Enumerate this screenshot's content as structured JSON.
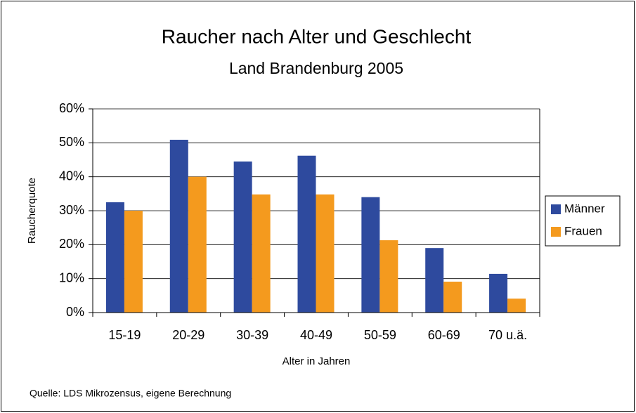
{
  "chart_data": {
    "type": "bar",
    "title": "Raucher nach Alter und Geschlecht",
    "subtitle": "Land Brandenburg 2005",
    "ylabel": "Raucherquote",
    "xlabel": "Alter in Jahren",
    "source": "Quelle: LDS Mikrozensus, eigene Berechnung",
    "categories": [
      "15-19",
      "20-29",
      "30-39",
      "40-49",
      "50-59",
      "60-69",
      "70 u.ä."
    ],
    "series": [
      {
        "name": "Männer",
        "color": "#2e4a9e",
        "values": [
          32.5,
          50.9,
          44.5,
          46.2,
          34,
          19,
          11.4
        ]
      },
      {
        "name": "Frauen",
        "color": "#f49a1e",
        "values": [
          30,
          40,
          34.8,
          34.8,
          21.3,
          9.1,
          4.1
        ]
      }
    ],
    "ylim": [
      0,
      60
    ],
    "yticks": [
      {
        "value": 0,
        "label": "0%"
      },
      {
        "value": 10,
        "label": "10%"
      },
      {
        "value": 20,
        "label": "20%"
      },
      {
        "value": 30,
        "label": "30%"
      },
      {
        "value": 40,
        "label": "40%"
      },
      {
        "value": 50,
        "label": "50%"
      },
      {
        "value": 60,
        "label": "60%"
      }
    ],
    "grid": true,
    "legend": "right"
  }
}
